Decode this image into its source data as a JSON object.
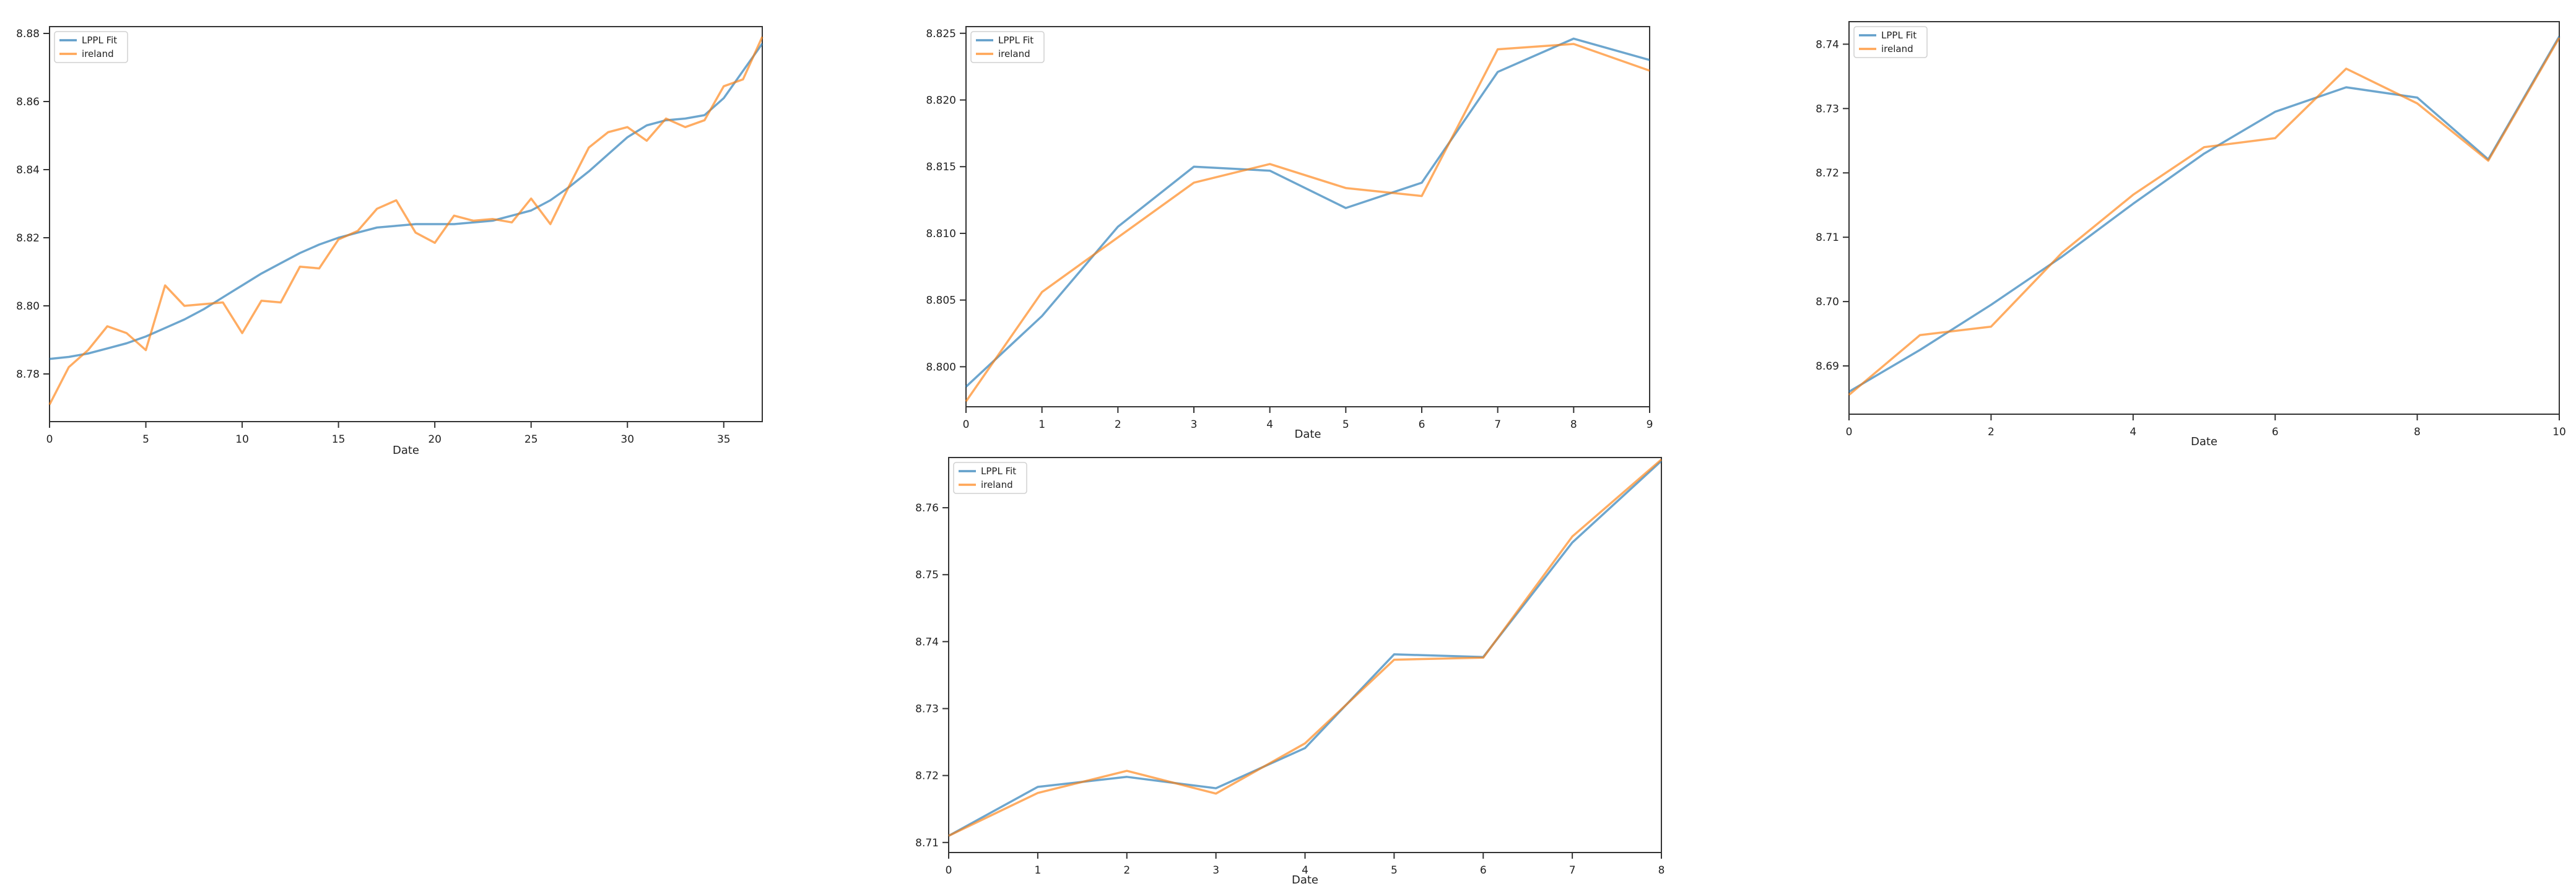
{
  "colors": {
    "fit": "#1f77b4",
    "series": "#ff7f0e"
  },
  "chart_data": [
    {
      "type": "line",
      "xlabel": "Date",
      "ylabel": "",
      "xlim": [
        0,
        37
      ],
      "ylim": [
        8.766,
        8.882
      ],
      "xticks": [
        0,
        5,
        10,
        15,
        20,
        25,
        30,
        35
      ],
      "yticks": [
        8.78,
        8.8,
        8.82,
        8.84,
        8.86,
        8.88
      ],
      "ytick_labels": [
        "8.78",
        "8.80",
        "8.82",
        "8.84",
        "8.86",
        "8.88"
      ],
      "legend": "top-left",
      "series": [
        {
          "name": "LPPL Fit",
          "x": [
            0,
            1,
            2,
            3,
            4,
            5,
            6,
            7,
            8,
            9,
            10,
            11,
            12,
            13,
            14,
            15,
            16,
            17,
            18,
            19,
            20,
            21,
            22,
            23,
            24,
            25,
            26,
            27,
            28,
            29,
            30,
            31,
            32,
            33,
            34,
            35,
            36,
            37
          ],
          "y": [
            8.7844,
            8.785,
            8.786,
            8.7875,
            8.789,
            8.791,
            8.7935,
            8.796,
            8.799,
            8.8025,
            8.806,
            8.8095,
            8.8125,
            8.8155,
            8.818,
            8.82,
            8.8215,
            8.823,
            8.8235,
            8.824,
            8.824,
            8.824,
            8.8245,
            8.825,
            8.8265,
            8.828,
            8.831,
            8.835,
            8.8395,
            8.8445,
            8.8495,
            8.853,
            8.8545,
            8.855,
            8.856,
            8.861,
            8.869,
            8.877
          ]
        },
        {
          "name": "ireland",
          "x": [
            0,
            1,
            2,
            3,
            4,
            5,
            6,
            7,
            8,
            9,
            10,
            11,
            12,
            13,
            14,
            15,
            16,
            17,
            18,
            19,
            20,
            21,
            22,
            23,
            24,
            25,
            26,
            27,
            28,
            29,
            30,
            31,
            32,
            33,
            34,
            35,
            36,
            37
          ],
          "y": [
            8.771,
            8.782,
            8.787,
            8.794,
            8.792,
            8.787,
            8.806,
            8.8,
            8.8005,
            8.801,
            8.792,
            8.8015,
            8.801,
            8.8115,
            8.811,
            8.8195,
            8.822,
            8.8285,
            8.831,
            8.8215,
            8.8185,
            8.8265,
            8.825,
            8.8255,
            8.8245,
            8.8315,
            8.824,
            8.8355,
            8.8465,
            8.851,
            8.8525,
            8.8485,
            8.855,
            8.8525,
            8.8545,
            8.8645,
            8.8665,
            8.879
          ]
        }
      ]
    },
    {
      "type": "line",
      "xlabel": "Date",
      "ylabel": "",
      "xlim": [
        0,
        9
      ],
      "ylim": [
        8.797,
        8.8255
      ],
      "xticks": [
        0,
        1,
        2,
        3,
        4,
        5,
        6,
        7,
        8,
        9
      ],
      "yticks": [
        8.8,
        8.805,
        8.81,
        8.815,
        8.82,
        8.825
      ],
      "ytick_labels": [
        "8.800",
        "8.805",
        "8.810",
        "8.815",
        "8.820",
        "8.825"
      ],
      "legend": "top-left",
      "series": [
        {
          "name": "LPPL Fit",
          "x": [
            0,
            1,
            2,
            3,
            4,
            5,
            6,
            7,
            8,
            9
          ],
          "y": [
            8.7985,
            8.8038,
            8.8105,
            8.815,
            8.8147,
            8.8119,
            8.8138,
            8.8221,
            8.8246,
            8.823
          ]
        },
        {
          "name": "ireland",
          "x": [
            0,
            1,
            2,
            3,
            4,
            5,
            6,
            7,
            8,
            9
          ],
          "y": [
            8.7974,
            8.8056,
            8.8097,
            8.8138,
            8.8152,
            8.8134,
            8.8128,
            8.8238,
            8.8242,
            8.8222
          ]
        }
      ]
    },
    {
      "type": "line",
      "xlabel": "Date",
      "ylabel": "",
      "xlim": [
        0,
        10
      ],
      "ylim": [
        8.6825,
        8.7435
      ],
      "xticks": [
        0,
        2,
        4,
        6,
        8,
        10
      ],
      "yticks": [
        8.69,
        8.7,
        8.71,
        8.72,
        8.73,
        8.74
      ],
      "ytick_labels": [
        "8.69",
        "8.70",
        "8.71",
        "8.72",
        "8.73",
        "8.74"
      ],
      "legend": "top-left",
      "series": [
        {
          "name": "LPPL Fit",
          "x": [
            0,
            1,
            2,
            3,
            4,
            5,
            6,
            7,
            8,
            9,
            10
          ],
          "y": [
            8.686,
            8.6925,
            8.6995,
            8.707,
            8.7152,
            8.723,
            8.7295,
            8.7333,
            8.7317,
            8.7221,
            8.7412
          ]
        },
        {
          "name": "ireland",
          "x": [
            0,
            1,
            2,
            3,
            4,
            5,
            6,
            7,
            8,
            9,
            10
          ],
          "y": [
            8.6855,
            8.6948,
            8.6961,
            8.7076,
            8.7166,
            8.724,
            8.7254,
            8.7362,
            8.7308,
            8.7219,
            8.741
          ]
        }
      ]
    },
    {
      "type": "line",
      "xlabel": "Date",
      "ylabel": "",
      "xlim": [
        0,
        8
      ],
      "ylim": [
        8.7085,
        8.7675
      ],
      "xticks": [
        0,
        1,
        2,
        3,
        4,
        5,
        6,
        7,
        8
      ],
      "yticks": [
        8.71,
        8.72,
        8.73,
        8.74,
        8.75,
        8.76
      ],
      "ytick_labels": [
        "8.71",
        "8.72",
        "8.73",
        "8.74",
        "8.75",
        "8.76"
      ],
      "legend": "top-left",
      "series": [
        {
          "name": "LPPL Fit",
          "x": [
            0,
            1,
            2,
            3,
            4,
            5,
            6,
            7,
            8
          ],
          "y": [
            8.711,
            8.7183,
            8.7198,
            8.7181,
            8.7241,
            8.7381,
            8.7377,
            8.7548,
            8.767
          ]
        },
        {
          "name": "ireland",
          "x": [
            0,
            1,
            2,
            3,
            4,
            5,
            6,
            7,
            8
          ],
          "y": [
            8.711,
            8.7174,
            8.7207,
            8.7173,
            8.7248,
            8.7373,
            8.7376,
            8.7557,
            8.7672
          ]
        }
      ]
    }
  ]
}
